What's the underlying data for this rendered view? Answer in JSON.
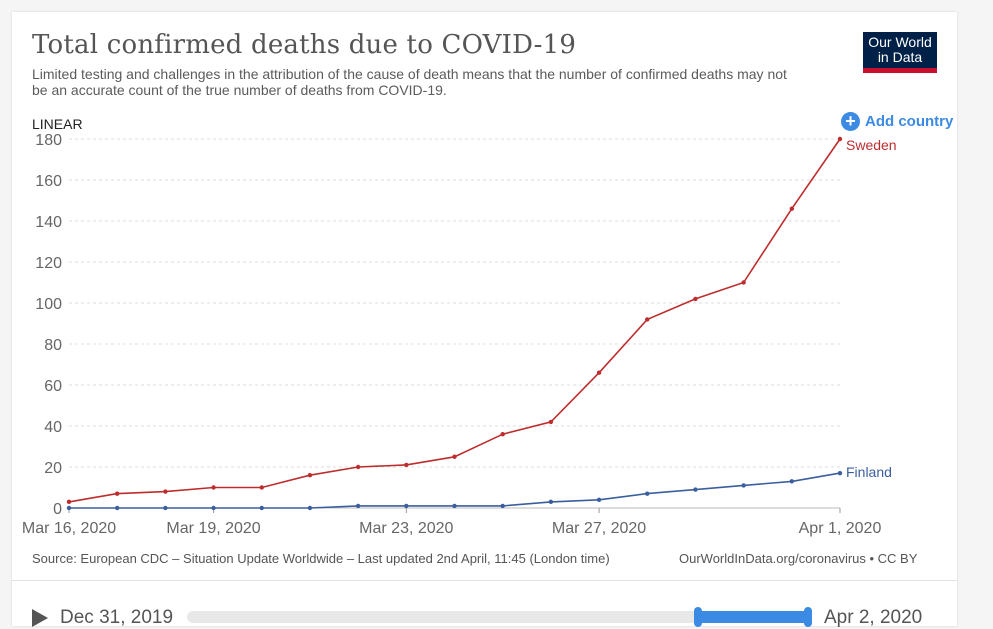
{
  "header": {
    "title": "Total confirmed deaths due to COVID-19",
    "subtitle": "Limited testing and challenges in the attribution of the cause of death means that the number of confirmed deaths may not be an accurate count of the true number of deaths from COVID-19.",
    "logo_line1": "Our World",
    "logo_line2": "in Data"
  },
  "controls": {
    "scale": "LINEAR",
    "add_country": "Add country"
  },
  "footer": {
    "source": "Source: European CDC – Situation Update Worldwide – Last updated 2nd April, 11:45 (London time)",
    "credit": "OurWorldInData.org/coronavirus • CC BY"
  },
  "timeline": {
    "start_label": "Dec 31, 2019",
    "end_label": "Apr 2, 2020",
    "selected_start": "Mar 16, 2020",
    "selected_end": "Apr 1, 2020"
  },
  "colors": {
    "sweden": "#be2d2d",
    "finland": "#3b5f9e",
    "accent": "#3b8ae3",
    "grid": "#dddddd"
  },
  "chart_data": {
    "type": "line",
    "x": [
      "2020-03-16",
      "2020-03-17",
      "2020-03-18",
      "2020-03-19",
      "2020-03-20",
      "2020-03-21",
      "2020-03-22",
      "2020-03-23",
      "2020-03-24",
      "2020-03-25",
      "2020-03-26",
      "2020-03-27",
      "2020-03-28",
      "2020-03-29",
      "2020-03-30",
      "2020-03-31",
      "2020-04-01"
    ],
    "x_ticks": [
      {
        "date": "2020-03-16",
        "label": "Mar 16, 2020"
      },
      {
        "date": "2020-03-19",
        "label": "Mar 19, 2020"
      },
      {
        "date": "2020-03-23",
        "label": "Mar 23, 2020"
      },
      {
        "date": "2020-03-27",
        "label": "Mar 27, 2020"
      },
      {
        "date": "2020-04-01",
        "label": "Apr 1, 2020"
      }
    ],
    "y_ticks": [
      0,
      20,
      40,
      60,
      80,
      100,
      120,
      140,
      160,
      180
    ],
    "ylim": [
      0,
      180
    ],
    "grid": true,
    "legend": "inline labels at line ends",
    "series": [
      {
        "name": "Sweden",
        "values": [
          3,
          7,
          8,
          10,
          10,
          16,
          20,
          21,
          25,
          36,
          42,
          66,
          92,
          102,
          110,
          146,
          180
        ]
      },
      {
        "name": "Finland",
        "values": [
          0,
          0,
          0,
          0,
          0,
          0,
          1,
          1,
          1,
          1,
          3,
          4,
          7,
          9,
          11,
          13,
          17
        ]
      }
    ]
  }
}
